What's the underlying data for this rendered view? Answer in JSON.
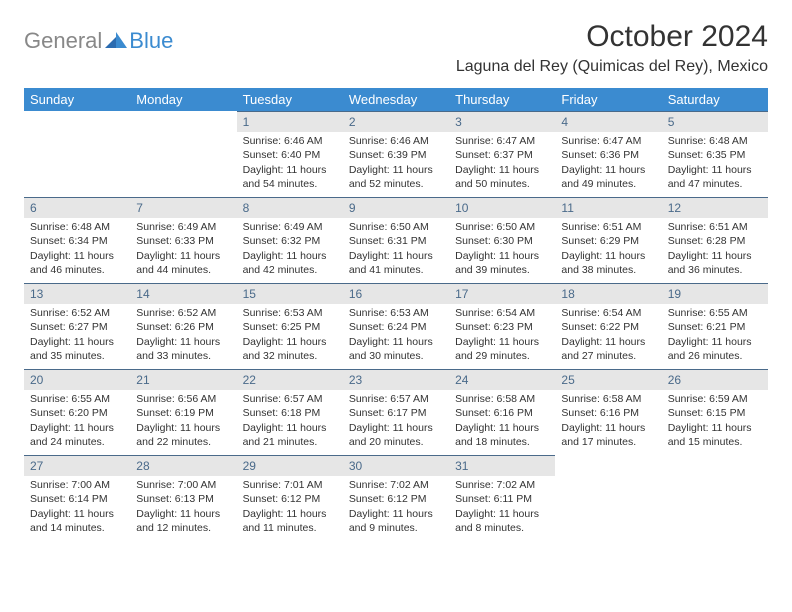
{
  "brand": {
    "part1": "General",
    "part2": "Blue"
  },
  "title": "October 2024",
  "location": "Laguna del Rey (Quimicas del Rey), Mexico",
  "colors": {
    "header_bg": "#3b8bd0",
    "header_fg": "#ffffff",
    "daynum_bg": "#e6e6e6",
    "daynum_fg": "#4a6a8a",
    "daynum_border": "#4a6a8a",
    "body_bg": "#ffffff",
    "text": "#333333"
  },
  "dow": [
    "Sunday",
    "Monday",
    "Tuesday",
    "Wednesday",
    "Thursday",
    "Friday",
    "Saturday"
  ],
  "weeks": [
    [
      {
        "empty": true
      },
      {
        "empty": true
      },
      {
        "n": "1",
        "sr": "Sunrise: 6:46 AM",
        "ss": "Sunset: 6:40 PM",
        "dl": "Daylight: 11 hours and 54 minutes."
      },
      {
        "n": "2",
        "sr": "Sunrise: 6:46 AM",
        "ss": "Sunset: 6:39 PM",
        "dl": "Daylight: 11 hours and 52 minutes."
      },
      {
        "n": "3",
        "sr": "Sunrise: 6:47 AM",
        "ss": "Sunset: 6:37 PM",
        "dl": "Daylight: 11 hours and 50 minutes."
      },
      {
        "n": "4",
        "sr": "Sunrise: 6:47 AM",
        "ss": "Sunset: 6:36 PM",
        "dl": "Daylight: 11 hours and 49 minutes."
      },
      {
        "n": "5",
        "sr": "Sunrise: 6:48 AM",
        "ss": "Sunset: 6:35 PM",
        "dl": "Daylight: 11 hours and 47 minutes."
      }
    ],
    [
      {
        "n": "6",
        "sr": "Sunrise: 6:48 AM",
        "ss": "Sunset: 6:34 PM",
        "dl": "Daylight: 11 hours and 46 minutes."
      },
      {
        "n": "7",
        "sr": "Sunrise: 6:49 AM",
        "ss": "Sunset: 6:33 PM",
        "dl": "Daylight: 11 hours and 44 minutes."
      },
      {
        "n": "8",
        "sr": "Sunrise: 6:49 AM",
        "ss": "Sunset: 6:32 PM",
        "dl": "Daylight: 11 hours and 42 minutes."
      },
      {
        "n": "9",
        "sr": "Sunrise: 6:50 AM",
        "ss": "Sunset: 6:31 PM",
        "dl": "Daylight: 11 hours and 41 minutes."
      },
      {
        "n": "10",
        "sr": "Sunrise: 6:50 AM",
        "ss": "Sunset: 6:30 PM",
        "dl": "Daylight: 11 hours and 39 minutes."
      },
      {
        "n": "11",
        "sr": "Sunrise: 6:51 AM",
        "ss": "Sunset: 6:29 PM",
        "dl": "Daylight: 11 hours and 38 minutes."
      },
      {
        "n": "12",
        "sr": "Sunrise: 6:51 AM",
        "ss": "Sunset: 6:28 PM",
        "dl": "Daylight: 11 hours and 36 minutes."
      }
    ],
    [
      {
        "n": "13",
        "sr": "Sunrise: 6:52 AM",
        "ss": "Sunset: 6:27 PM",
        "dl": "Daylight: 11 hours and 35 minutes."
      },
      {
        "n": "14",
        "sr": "Sunrise: 6:52 AM",
        "ss": "Sunset: 6:26 PM",
        "dl": "Daylight: 11 hours and 33 minutes."
      },
      {
        "n": "15",
        "sr": "Sunrise: 6:53 AM",
        "ss": "Sunset: 6:25 PM",
        "dl": "Daylight: 11 hours and 32 minutes."
      },
      {
        "n": "16",
        "sr": "Sunrise: 6:53 AM",
        "ss": "Sunset: 6:24 PM",
        "dl": "Daylight: 11 hours and 30 minutes."
      },
      {
        "n": "17",
        "sr": "Sunrise: 6:54 AM",
        "ss": "Sunset: 6:23 PM",
        "dl": "Daylight: 11 hours and 29 minutes."
      },
      {
        "n": "18",
        "sr": "Sunrise: 6:54 AM",
        "ss": "Sunset: 6:22 PM",
        "dl": "Daylight: 11 hours and 27 minutes."
      },
      {
        "n": "19",
        "sr": "Sunrise: 6:55 AM",
        "ss": "Sunset: 6:21 PM",
        "dl": "Daylight: 11 hours and 26 minutes."
      }
    ],
    [
      {
        "n": "20",
        "sr": "Sunrise: 6:55 AM",
        "ss": "Sunset: 6:20 PM",
        "dl": "Daylight: 11 hours and 24 minutes."
      },
      {
        "n": "21",
        "sr": "Sunrise: 6:56 AM",
        "ss": "Sunset: 6:19 PM",
        "dl": "Daylight: 11 hours and 22 minutes."
      },
      {
        "n": "22",
        "sr": "Sunrise: 6:57 AM",
        "ss": "Sunset: 6:18 PM",
        "dl": "Daylight: 11 hours and 21 minutes."
      },
      {
        "n": "23",
        "sr": "Sunrise: 6:57 AM",
        "ss": "Sunset: 6:17 PM",
        "dl": "Daylight: 11 hours and 20 minutes."
      },
      {
        "n": "24",
        "sr": "Sunrise: 6:58 AM",
        "ss": "Sunset: 6:16 PM",
        "dl": "Daylight: 11 hours and 18 minutes."
      },
      {
        "n": "25",
        "sr": "Sunrise: 6:58 AM",
        "ss": "Sunset: 6:16 PM",
        "dl": "Daylight: 11 hours and 17 minutes."
      },
      {
        "n": "26",
        "sr": "Sunrise: 6:59 AM",
        "ss": "Sunset: 6:15 PM",
        "dl": "Daylight: 11 hours and 15 minutes."
      }
    ],
    [
      {
        "n": "27",
        "sr": "Sunrise: 7:00 AM",
        "ss": "Sunset: 6:14 PM",
        "dl": "Daylight: 11 hours and 14 minutes."
      },
      {
        "n": "28",
        "sr": "Sunrise: 7:00 AM",
        "ss": "Sunset: 6:13 PM",
        "dl": "Daylight: 11 hours and 12 minutes."
      },
      {
        "n": "29",
        "sr": "Sunrise: 7:01 AM",
        "ss": "Sunset: 6:12 PM",
        "dl": "Daylight: 11 hours and 11 minutes."
      },
      {
        "n": "30",
        "sr": "Sunrise: 7:02 AM",
        "ss": "Sunset: 6:12 PM",
        "dl": "Daylight: 11 hours and 9 minutes."
      },
      {
        "n": "31",
        "sr": "Sunrise: 7:02 AM",
        "ss": "Sunset: 6:11 PM",
        "dl": "Daylight: 11 hours and 8 minutes."
      },
      {
        "empty": true
      },
      {
        "empty": true
      }
    ]
  ]
}
